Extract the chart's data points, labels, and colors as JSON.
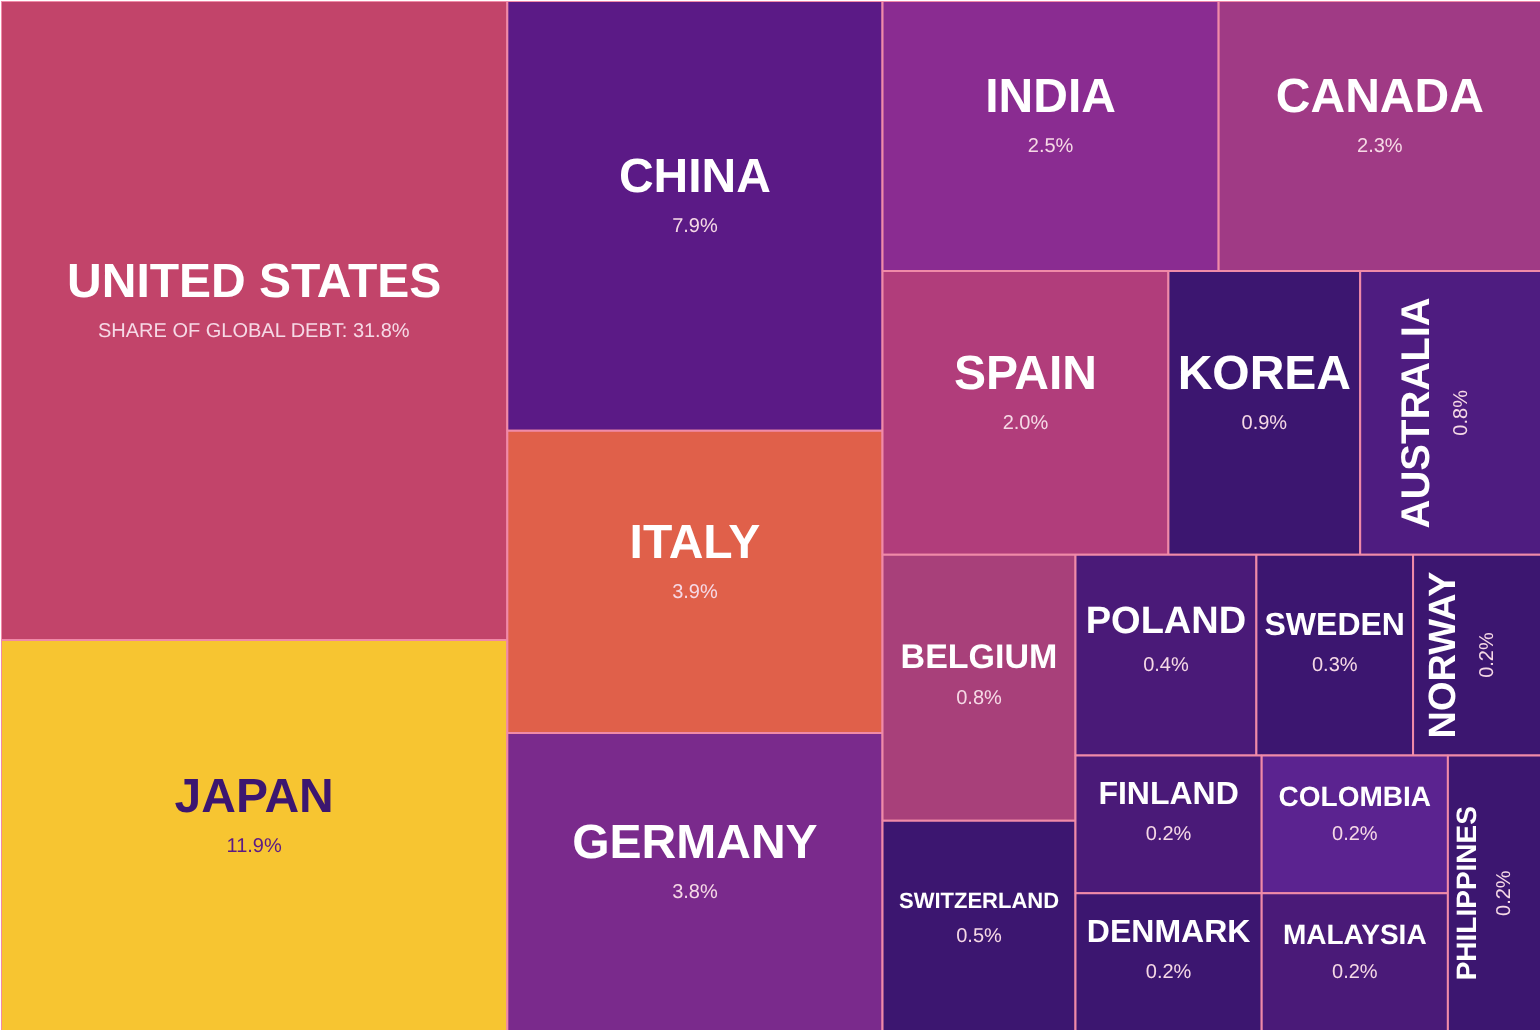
{
  "chart_data": {
    "type": "other",
    "categories": [
      "UNITED STATES",
      "JAPAN",
      "CHINA",
      "ITALY",
      "GERMANY",
      "INDIA",
      "CANADA",
      "SPAIN",
      "KOREA",
      "AUSTRALIA",
      "BELGIUM",
      "SWITZERLAND",
      "POLAND",
      "SWEDEN",
      "NORWAY",
      "FINLAND",
      "DENMARK",
      "COLOMBIA",
      "MALAYSIA",
      "PHILIPPINES"
    ],
    "values": [
      31.8,
      11.9,
      7.9,
      3.9,
      3.8,
      2.5,
      2.3,
      2.0,
      0.9,
      0.8,
      0.8,
      0.5,
      0.4,
      0.3,
      0.2,
      0.2,
      0.2,
      0.2,
      0.2,
      0.2
    ],
    "value_labels": [
      "SHARE OF GLOBAL DEBT: 31.8%",
      "11.9%",
      "7.9%",
      "3.9%",
      "3.8%",
      "2.5%",
      "2.3%",
      "2.0%",
      "0.9%",
      "0.8%",
      "0.8%",
      "0.5%",
      "0.4%",
      "0.3%",
      "0.2%",
      "0.2%",
      "0.2%",
      "0.2%",
      "0.2%",
      "0.2%"
    ],
    "colors": [
      "#c2446a",
      "#f7c531",
      "#5b1a86",
      "#e0604a",
      "#7a2a8c",
      "#8a2c91",
      "#a03a85",
      "#b13d7b",
      "#3c1670",
      "#4e1c80",
      "#a8407a",
      "#3c1670",
      "#4a1a78",
      "#3c1670",
      "#3c1670",
      "#4a1a78",
      "#3c1670",
      "#5b2390",
      "#4a1a78",
      "#3c1670"
    ]
  }
}
